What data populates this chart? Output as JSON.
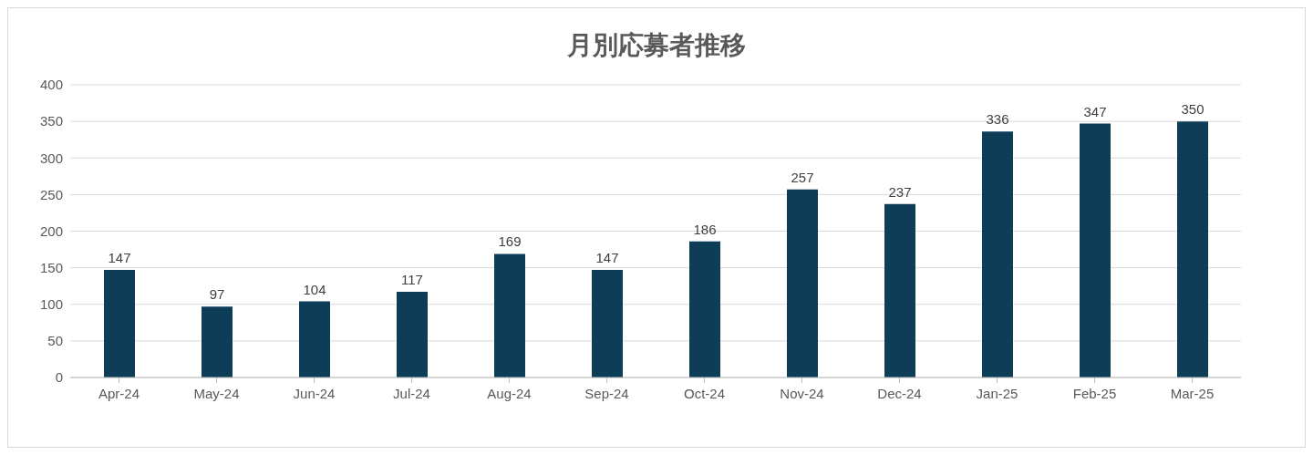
{
  "chart_data": {
    "type": "bar",
    "title": "月別応募者推移",
    "categories": [
      "Apr-24",
      "May-24",
      "Jun-24",
      "Jul-24",
      "Aug-24",
      "Sep-24",
      "Oct-24",
      "Nov-24",
      "Dec-24",
      "Jan-25",
      "Feb-25",
      "Mar-25"
    ],
    "values": [
      147,
      97,
      104,
      117,
      169,
      147,
      186,
      257,
      237,
      336,
      347,
      350
    ],
    "color": "#0e3d58",
    "ylim": [
      0,
      400
    ],
    "yticks": [
      0,
      50,
      100,
      150,
      200,
      250,
      300,
      350,
      400
    ],
    "grid": "y",
    "data_labels": true
  }
}
